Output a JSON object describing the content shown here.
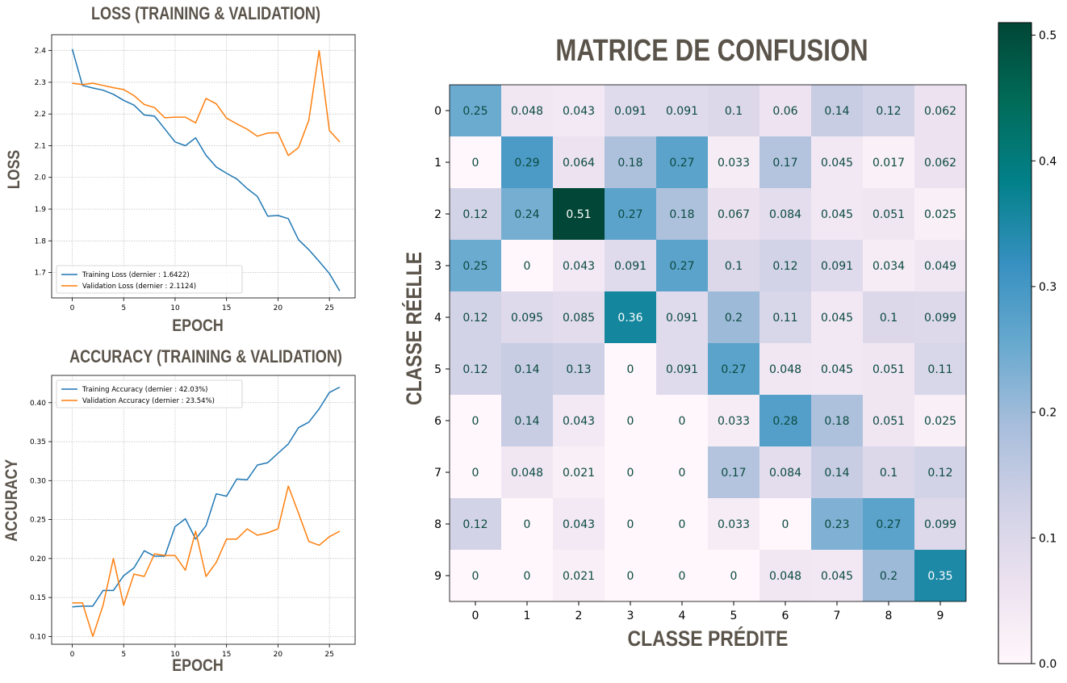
{
  "chart_data": [
    {
      "type": "line",
      "title": "LOSS (TRAINING & VALIDATION)",
      "xlabel": "EPOCH",
      "ylabel": "LOSS",
      "xlim": [
        -2,
        27.5
      ],
      "ylim": [
        1.62,
        2.45
      ],
      "xticks": [
        0,
        5,
        10,
        15,
        20,
        25
      ],
      "yticks": [
        1.7,
        1.8,
        1.9,
        2.0,
        2.1,
        2.2,
        2.3,
        2.4
      ],
      "ytick_labels": [
        "1.7",
        "1.8",
        "1.9",
        "2.0",
        "2.1",
        "2.2",
        "2.3",
        "2.4"
      ],
      "grid": true,
      "legend": "lower-left",
      "x": [
        0,
        1,
        2,
        3,
        4,
        5,
        6,
        7,
        8,
        9,
        10,
        11,
        12,
        13,
        14,
        15,
        16,
        17,
        18,
        19,
        20,
        21,
        22,
        23,
        24,
        25,
        26
      ],
      "series": [
        {
          "name": "Training Loss (dernier : 1.6422)",
          "color": "#1f77b4",
          "values": [
            2.405,
            2.29,
            2.282,
            2.275,
            2.262,
            2.243,
            2.228,
            2.197,
            2.193,
            2.153,
            2.112,
            2.1,
            2.125,
            2.07,
            2.033,
            2.013,
            1.995,
            1.965,
            1.94,
            1.878,
            1.88,
            1.87,
            1.803,
            1.772,
            1.735,
            1.697,
            1.642
          ]
        },
        {
          "name": "Validation Loss (dernier : 2.1124)",
          "color": "#ff7f0e",
          "values": [
            2.297,
            2.293,
            2.297,
            2.29,
            2.283,
            2.277,
            2.258,
            2.23,
            2.22,
            2.188,
            2.19,
            2.19,
            2.172,
            2.249,
            2.232,
            2.187,
            2.169,
            2.152,
            2.13,
            2.14,
            2.141,
            2.069,
            2.094,
            2.18,
            2.4,
            2.148,
            2.112
          ]
        }
      ]
    },
    {
      "type": "line",
      "title": "ACCURACY (TRAINING & VALIDATION)",
      "xlabel": "EPOCH",
      "ylabel": "ACCURACY",
      "xlim": [
        -2,
        27.5
      ],
      "ylim": [
        0.09,
        0.435
      ],
      "xticks": [
        0,
        5,
        10,
        15,
        20,
        25
      ],
      "yticks": [
        0.1,
        0.15,
        0.2,
        0.25,
        0.3,
        0.35,
        0.4
      ],
      "ytick_labels": [
        "0.10",
        "0.15",
        "0.20",
        "0.25",
        "0.30",
        "0.35",
        "0.40"
      ],
      "grid": true,
      "legend": "top-left",
      "x": [
        0,
        1,
        2,
        3,
        4,
        5,
        6,
        7,
        8,
        9,
        10,
        11,
        12,
        13,
        14,
        15,
        16,
        17,
        18,
        19,
        20,
        21,
        22,
        23,
        24,
        25,
        26
      ],
      "series": [
        {
          "name": "Training Accuracy (dernier : 42.03%)",
          "color": "#1f77b4",
          "values": [
            0.138,
            0.139,
            0.139,
            0.159,
            0.159,
            0.178,
            0.188,
            0.21,
            0.203,
            0.203,
            0.241,
            0.251,
            0.225,
            0.242,
            0.283,
            0.28,
            0.302,
            0.301,
            0.32,
            0.323,
            0.335,
            0.347,
            0.368,
            0.375,
            0.392,
            0.413,
            0.42
          ]
        },
        {
          "name": "Validation Accuracy (dernier : 23.54%)",
          "color": "#ff7f0e",
          "values": [
            0.143,
            0.143,
            0.1,
            0.14,
            0.2,
            0.14,
            0.18,
            0.177,
            0.206,
            0.204,
            0.204,
            0.185,
            0.235,
            0.177,
            0.195,
            0.225,
            0.225,
            0.238,
            0.23,
            0.233,
            0.238,
            0.293,
            0.258,
            0.222,
            0.217,
            0.228,
            0.235
          ]
        }
      ]
    },
    {
      "type": "heatmap",
      "title": "MATRICE DE CONFUSION",
      "xlabel": "CLASSE PRÉDITE",
      "ylabel": "CLASSE RÉELLE",
      "xticks": [
        "0",
        "1",
        "2",
        "3",
        "4",
        "5",
        "6",
        "7",
        "8",
        "9"
      ],
      "yticks": [
        "0",
        "1",
        "2",
        "3",
        "4",
        "5",
        "6",
        "7",
        "8",
        "9"
      ],
      "colorbar": {
        "min": 0.0,
        "max": 0.51,
        "ticks": [
          0.0,
          0.1,
          0.2,
          0.3,
          0.4,
          0.5
        ],
        "tick_labels": [
          "0.0",
          "0.1",
          "0.2",
          "0.3",
          "0.4",
          "0.5"
        ],
        "colormap": "PuBuGn"
      },
      "matrix_values": [
        [
          0.25,
          0.048,
          0.043,
          0.091,
          0.091,
          0.1,
          0.06,
          0.14,
          0.12,
          0.062
        ],
        [
          0,
          0.29,
          0.064,
          0.18,
          0.27,
          0.033,
          0.17,
          0.045,
          0.017,
          0.062
        ],
        [
          0.12,
          0.24,
          0.51,
          0.27,
          0.18,
          0.067,
          0.084,
          0.045,
          0.051,
          0.025
        ],
        [
          0.25,
          0,
          0.043,
          0.091,
          0.27,
          0.1,
          0.12,
          0.091,
          0.034,
          0.049
        ],
        [
          0.12,
          0.095,
          0.085,
          0.36,
          0.091,
          0.2,
          0.11,
          0.045,
          0.1,
          0.099
        ],
        [
          0.12,
          0.14,
          0.13,
          0,
          0.091,
          0.27,
          0.048,
          0.045,
          0.051,
          0.11
        ],
        [
          0,
          0.14,
          0.043,
          0,
          0,
          0.033,
          0.28,
          0.18,
          0.051,
          0.025
        ],
        [
          0,
          0.048,
          0.021,
          0,
          0,
          0.17,
          0.084,
          0.14,
          0.1,
          0.12
        ],
        [
          0.12,
          0,
          0.043,
          0,
          0,
          0.033,
          0,
          0.23,
          0.27,
          0.099
        ],
        [
          0,
          0,
          0.021,
          0,
          0,
          0,
          0.048,
          0.045,
          0.2,
          0.35
        ]
      ],
      "cell_labels": [
        [
          "0.25",
          "0.048",
          "0.043",
          "0.091",
          "0.091",
          "0.1",
          "0.06",
          "0.14",
          "0.12",
          "0.062"
        ],
        [
          "0",
          "0.29",
          "0.064",
          "0.18",
          "0.27",
          "0.033",
          "0.17",
          "0.045",
          "0.017",
          "0.062"
        ],
        [
          "0.12",
          "0.24",
          "0.51",
          "0.27",
          "0.18",
          "0.067",
          "0.084",
          "0.045",
          "0.051",
          "0.025"
        ],
        [
          "0.25",
          "0",
          "0.043",
          "0.091",
          "0.27",
          "0.1",
          "0.12",
          "0.091",
          "0.034",
          "0.049"
        ],
        [
          "0.12",
          "0.095",
          "0.085",
          "0.36",
          "0.091",
          "0.2",
          "0.11",
          "0.045",
          "0.1",
          "0.099"
        ],
        [
          "0.12",
          "0.14",
          "0.13",
          "0",
          "0.091",
          "0.27",
          "0.048",
          "0.045",
          "0.051",
          "0.11"
        ],
        [
          "0",
          "0.14",
          "0.043",
          "0",
          "0",
          "0.033",
          "0.28",
          "0.18",
          "0.051",
          "0.025"
        ],
        [
          "0",
          "0.048",
          "0.021",
          "0",
          "0",
          "0.17",
          "0.084",
          "0.14",
          "0.1",
          "0.12"
        ],
        [
          "0.12",
          "0",
          "0.043",
          "0",
          "0",
          "0.033",
          "0",
          "0.23",
          "0.27",
          "0.099"
        ],
        [
          "0",
          "0",
          "0.021",
          "0",
          "0",
          "0",
          "0.048",
          "0.045",
          "0.2",
          "0.35"
        ]
      ]
    }
  ]
}
